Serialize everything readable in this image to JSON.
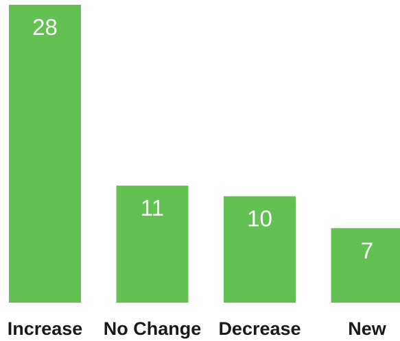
{
  "chart_data": {
    "type": "bar",
    "categories": [
      "Increase",
      "No Change",
      "Decrease",
      "New"
    ],
    "values": [
      28,
      11,
      10,
      7
    ],
    "data_labels": [
      "28",
      "11",
      "10",
      "7"
    ],
    "title": "",
    "xlabel": "",
    "ylabel": "",
    "ylim": [
      0,
      28
    ],
    "grid": false,
    "legend": "none",
    "bar_color": "#62c152",
    "label_color": "#ffffff",
    "axis_text_color": "#1a1a1a"
  }
}
